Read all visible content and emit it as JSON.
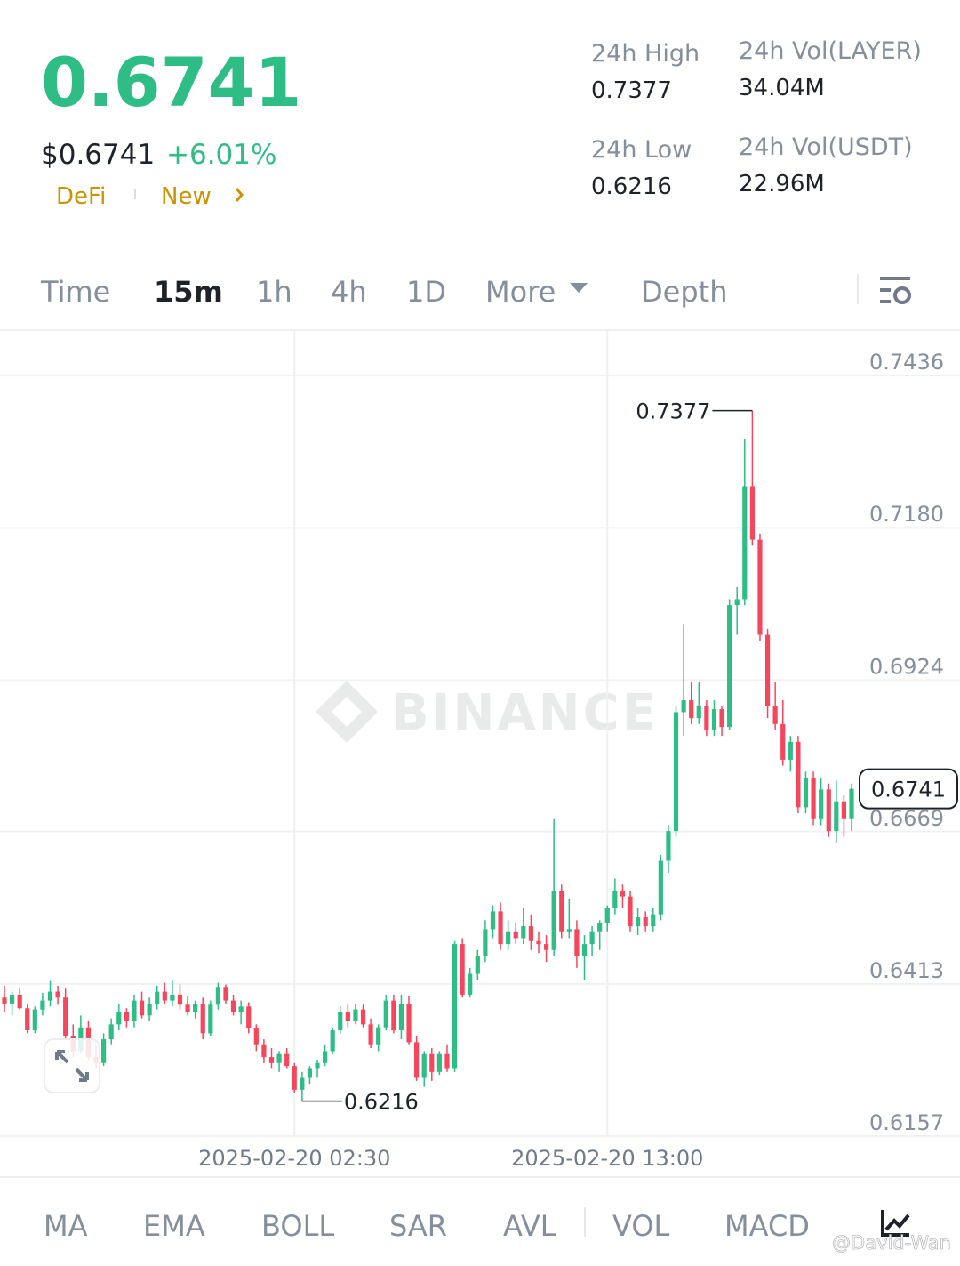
{
  "header": {
    "price": "0.6741",
    "price_usd": "$0.6741",
    "change": "+6.01%",
    "tags": [
      "DeFi",
      "New"
    ],
    "stats": [
      {
        "label": "24h High",
        "value": "0.7377"
      },
      {
        "label": "24h Vol(LAYER)",
        "value": "34.04M"
      },
      {
        "label": "24h Low",
        "value": "0.6216"
      },
      {
        "label": "24h Vol(USDT)",
        "value": "22.96M"
      }
    ]
  },
  "tabs": [
    "Time",
    "15m",
    "1h",
    "4h",
    "1D",
    "More",
    "Depth"
  ],
  "active_tab": "15m",
  "watermark": "BINANCE",
  "indicators": [
    "MA",
    "EMA",
    "BOLL",
    "SAR",
    "AVL",
    "VOL",
    "MACD"
  ],
  "credit": "@David-Wan",
  "chart_data": {
    "type": "candlestick",
    "categories": [
      null,
      null,
      null,
      null,
      null,
      null,
      null,
      null,
      null,
      null,
      null,
      null,
      null,
      null,
      null,
      null,
      null,
      null,
      null,
      null,
      null,
      null,
      null,
      null,
      null,
      null,
      null,
      null,
      null,
      null,
      null,
      null,
      null,
      null,
      null,
      null,
      null,
      null,
      "2025-02-20 02:30",
      null,
      null,
      null,
      null,
      null,
      null,
      null,
      null,
      null,
      null,
      null,
      null,
      null,
      null,
      null,
      null,
      null,
      null,
      null,
      null,
      null,
      null,
      null,
      null,
      null,
      null,
      null,
      null,
      null,
      null,
      null,
      null,
      null,
      null,
      null,
      null,
      null,
      null,
      null,
      null,
      "2025-02-20 13:00",
      null,
      null,
      null,
      null,
      null,
      null,
      null,
      null,
      null,
      null,
      null,
      null,
      null,
      null,
      null,
      null,
      null,
      null,
      null,
      null,
      null,
      null,
      null,
      null,
      null,
      null,
      null,
      null,
      null,
      null,
      null,
      null
    ],
    "open": [
      0.639,
      0.638,
      0.6395,
      0.6372,
      0.6335,
      0.637,
      0.6385,
      0.64,
      0.639,
      0.6325,
      0.63,
      0.634,
      0.629,
      0.628,
      0.632,
      0.6345,
      0.6365,
      0.635,
      0.6385,
      0.636,
      0.638,
      0.64,
      0.6385,
      0.6395,
      0.6378,
      0.6365,
      0.638,
      0.633,
      0.6378,
      0.6408,
      0.6385,
      0.6365,
      0.6375,
      0.6338,
      0.631,
      0.629,
      0.628,
      0.6295,
      0.6275,
      0.6235,
      0.6255,
      0.627,
      0.628,
      0.63,
      0.6335,
      0.6365,
      0.635,
      0.637,
      0.6345,
      0.631,
      0.634,
      0.6385,
      0.6335,
      0.638,
      0.6315,
      0.6255,
      0.6295,
      0.6265,
      0.6295,
      0.627,
      0.648,
      0.6395,
      0.643,
      0.646,
      0.6505,
      0.6535,
      0.648,
      0.65,
      0.649,
      0.651,
      0.6485,
      0.648,
      0.647,
      0.657,
      0.65,
      0.6505,
      0.646,
      0.648,
      0.65,
      0.6515,
      0.654,
      0.657,
      0.656,
      0.651,
      0.6525,
      0.651,
      0.653,
      0.662,
      0.667,
      0.687,
      0.689,
      0.686,
      0.688,
      0.684,
      0.6875,
      0.6845,
      0.705,
      0.706,
      0.725,
      0.716,
      0.7,
      0.688,
      0.685,
      0.679,
      0.682,
      0.671,
      0.676,
      0.669,
      0.674,
      0.667,
      0.672,
      0.669
    ],
    "high": [
      0.641,
      0.64,
      0.6405,
      0.6378,
      0.6375,
      0.6398,
      0.6418,
      0.641,
      0.6405,
      0.6345,
      0.636,
      0.635,
      0.631,
      0.633,
      0.6355,
      0.638,
      0.6372,
      0.6395,
      0.64,
      0.639,
      0.641,
      0.6415,
      0.642,
      0.6412,
      0.6392,
      0.6385,
      0.639,
      0.6385,
      0.6415,
      0.6412,
      0.6395,
      0.6385,
      0.6382,
      0.6345,
      0.632,
      0.6305,
      0.63,
      0.6305,
      0.628,
      0.6265,
      0.6275,
      0.6285,
      0.631,
      0.634,
      0.6375,
      0.638,
      0.638,
      0.6378,
      0.6355,
      0.6345,
      0.6395,
      0.6395,
      0.6395,
      0.6392,
      0.6325,
      0.63,
      0.6305,
      0.63,
      0.631,
      0.6485,
      0.649,
      0.644,
      0.647,
      0.652,
      0.6545,
      0.655,
      0.652,
      0.6515,
      0.654,
      0.653,
      0.65,
      0.6495,
      0.669,
      0.658,
      0.6555,
      0.652,
      0.6495,
      0.651,
      0.652,
      0.6545,
      0.659,
      0.658,
      0.657,
      0.654,
      0.6535,
      0.654,
      0.663,
      0.668,
      0.688,
      0.7018,
      0.692,
      0.692,
      0.689,
      0.689,
      0.688,
      0.706,
      0.708,
      0.733,
      0.7377,
      0.717,
      0.701,
      0.692,
      0.689,
      0.683,
      0.683,
      0.677,
      0.677,
      0.676,
      0.675,
      0.6755,
      0.673,
      0.675
    ],
    "low": [
      0.6365,
      0.636,
      0.637,
      0.633,
      0.633,
      0.636,
      0.6375,
      0.6378,
      0.632,
      0.629,
      0.6295,
      0.6285,
      0.627,
      0.6275,
      0.631,
      0.6335,
      0.634,
      0.634,
      0.6355,
      0.635,
      0.637,
      0.638,
      0.6375,
      0.637,
      0.636,
      0.6355,
      0.632,
      0.6325,
      0.637,
      0.638,
      0.636,
      0.6345,
      0.633,
      0.63,
      0.628,
      0.627,
      0.6265,
      0.627,
      0.623,
      0.6216,
      0.6245,
      0.6255,
      0.6275,
      0.6295,
      0.633,
      0.634,
      0.6345,
      0.634,
      0.6305,
      0.63,
      0.6335,
      0.633,
      0.632,
      0.631,
      0.625,
      0.624,
      0.625,
      0.626,
      0.6265,
      0.6265,
      0.639,
      0.639,
      0.642,
      0.645,
      0.649,
      0.647,
      0.647,
      0.648,
      0.648,
      0.647,
      0.6465,
      0.645,
      0.646,
      0.649,
      0.649,
      0.644,
      0.642,
      0.646,
      0.647,
      0.65,
      0.653,
      0.654,
      0.65,
      0.6495,
      0.65,
      0.65,
      0.652,
      0.66,
      0.666,
      0.683,
      0.685,
      0.685,
      0.683,
      0.683,
      0.683,
      0.684,
      0.7,
      0.705,
      0.715,
      0.699,
      0.686,
      0.684,
      0.678,
      0.677,
      0.67,
      0.67,
      0.668,
      0.668,
      0.666,
      0.665,
      0.666,
      0.667
    ],
    "close": [
      0.638,
      0.6395,
      0.6372,
      0.6335,
      0.637,
      0.6385,
      0.64,
      0.639,
      0.6325,
      0.63,
      0.634,
      0.629,
      0.628,
      0.632,
      0.6345,
      0.6365,
      0.635,
      0.6385,
      0.636,
      0.638,
      0.64,
      0.6385,
      0.6395,
      0.6378,
      0.6365,
      0.638,
      0.633,
      0.6378,
      0.6408,
      0.6385,
      0.6365,
      0.6375,
      0.6338,
      0.631,
      0.629,
      0.628,
      0.6295,
      0.6275,
      0.6235,
      0.6255,
      0.627,
      0.628,
      0.63,
      0.6335,
      0.6365,
      0.635,
      0.637,
      0.6345,
      0.631,
      0.634,
      0.6385,
      0.6335,
      0.638,
      0.6315,
      0.6255,
      0.6295,
      0.6265,
      0.6295,
      0.627,
      0.648,
      0.6395,
      0.643,
      0.646,
      0.6505,
      0.6535,
      0.648,
      0.65,
      0.649,
      0.651,
      0.6485,
      0.648,
      0.647,
      0.657,
      0.65,
      0.6505,
      0.646,
      0.648,
      0.65,
      0.6515,
      0.654,
      0.657,
      0.656,
      0.651,
      0.6525,
      0.651,
      0.653,
      0.662,
      0.667,
      0.687,
      0.689,
      0.686,
      0.688,
      0.684,
      0.6875,
      0.6845,
      0.705,
      0.706,
      0.725,
      0.716,
      0.7,
      0.688,
      0.685,
      0.679,
      0.682,
      0.671,
      0.676,
      0.669,
      0.674,
      0.667,
      0.672,
      0.669,
      0.6741
    ],
    "up_color": "#2ebd85",
    "down_color": "#f6465d",
    "ylim": [
      0.6157,
      0.7511
    ],
    "yticks": [
      0.6157,
      0.6413,
      0.6669,
      0.6924,
      {
        "value": 0.718,
        "label": "0.7180"
      },
      0.7436
    ],
    "grid": true
  }
}
